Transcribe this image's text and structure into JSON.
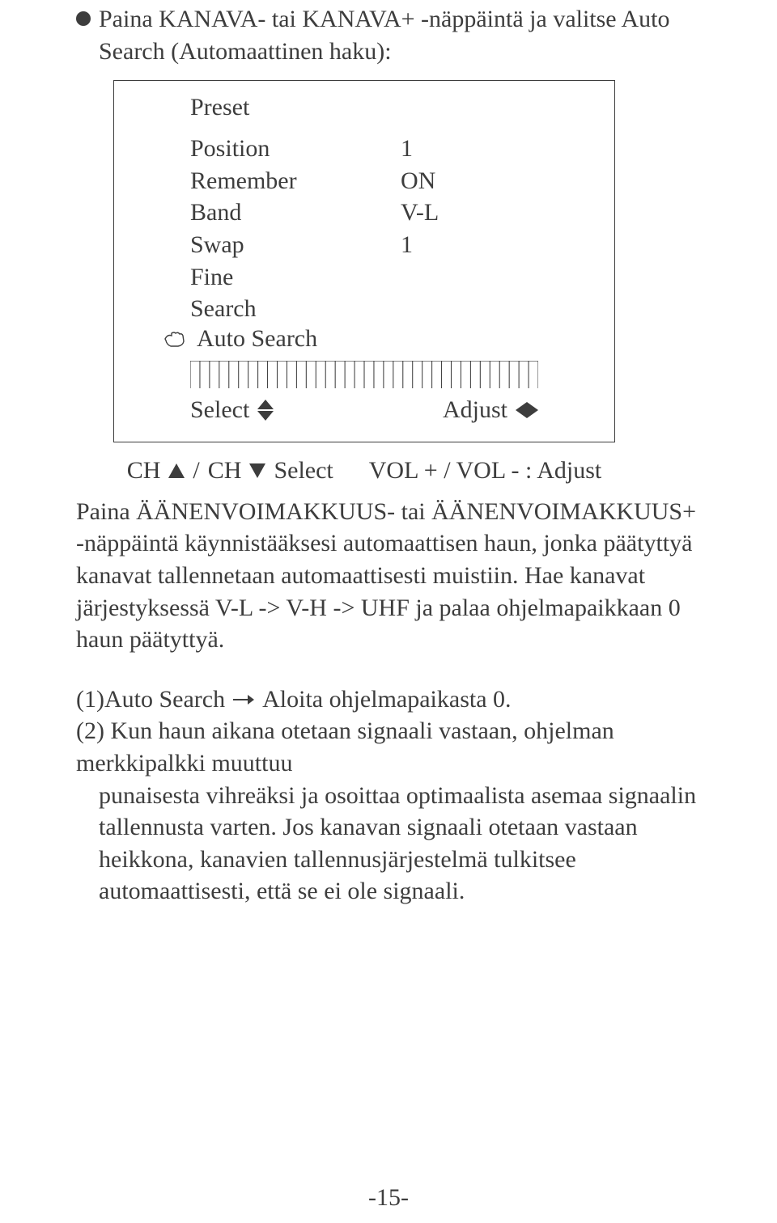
{
  "colors": {
    "text": "#3d3d3d",
    "border": "#3d3d3d",
    "bg": "#ffffff"
  },
  "fonts": {
    "family": "Times New Roman",
    "body_pt": 30,
    "line_height": 1.32
  },
  "lead_text": "Paina KANAVA- tai KANAVA+ -näppäintä ja valitse Auto Search (Automaattinen haku):",
  "menu": {
    "title": "Preset",
    "rows": [
      {
        "k": "Position",
        "v": "1"
      },
      {
        "k": "Remember",
        "v": "ON"
      },
      {
        "k": "Band",
        "v": "V-L"
      },
      {
        "k": "Swap",
        "v": "1"
      },
      {
        "k": "Fine",
        "v": ""
      },
      {
        "k": "Search",
        "v": ""
      }
    ],
    "auto_label": "Auto Search",
    "select_label": "Select",
    "adjust_label": "Adjust",
    "tick_count": 36,
    "tick_color": "#3d3d3d"
  },
  "below_box": {
    "ch_label": "CH",
    "select_label": "Select",
    "vol_label": "VOL + / VOL - : Adjust",
    "separator": "/"
  },
  "para1": "Paina ÄÄNENVOIMAKKUUS- tai ÄÄNENVOIMAKKUUS+ -näppäintä käynnistääksesi automaattisen haun, jonka päätyttyä kanavat tallennetaan automaattisesti muistiin. Hae kanavat järjestyksessä V-L -> V-H -> UHF ja palaa ohjelmapaikkaan 0 haun päätyttyä.",
  "numbered": {
    "item1_prefix": "(1)Auto Search",
    "item1_suffix": "Aloita ohjelmapaikasta 0.",
    "item2_first": "(2) Kun haun aikana otetaan signaali vastaan, ohjelman merkkipalkki muuttuu",
    "item2_rest": "punaisesta vihreäksi ja osoittaa optimaalista asemaa signaalin tallennusta varten. Jos kanavan signaali otetaan vastaan heikkona, kanavien tallennusjärjestelmä tulkitsee automaattisesti, että se ei ole signaali."
  },
  "page_number": "-15-"
}
